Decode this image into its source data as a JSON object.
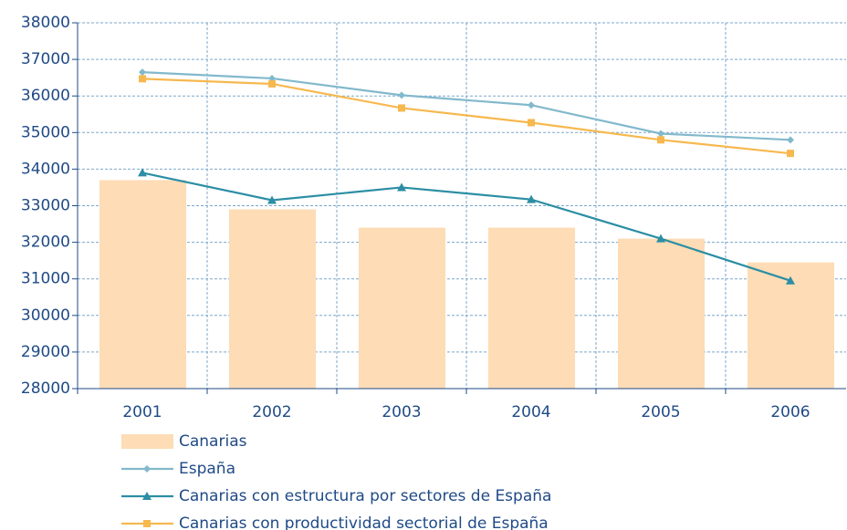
{
  "chart_data": {
    "type": "bar",
    "categories": [
      "2001",
      "2002",
      "2003",
      "2004",
      "2005",
      "2006"
    ],
    "series": [
      {
        "name": "Canarias",
        "type": "bar",
        "color": "#fddcb6",
        "values": [
          33700,
          32900,
          32400,
          32400,
          32100,
          31450
        ]
      },
      {
        "name": "España",
        "type": "line",
        "marker": "diamond",
        "color": "#82b9cc",
        "values": [
          36650,
          36480,
          36020,
          35750,
          34970,
          34800
        ]
      },
      {
        "name": "Canarias con estructura por sectores de España",
        "type": "line",
        "marker": "triangle",
        "color": "#2b8ea4",
        "values": [
          33900,
          33150,
          33500,
          33170,
          32100,
          30950
        ]
      },
      {
        "name": "Canarias con productividad sectorial de España",
        "type": "line",
        "marker": "square",
        "color": "#f7b84f",
        "values": [
          36470,
          36330,
          35670,
          35270,
          34800,
          34430
        ]
      }
    ],
    "ylim": [
      28000,
      38000
    ],
    "yticks": [
      28000,
      29000,
      30000,
      31000,
      32000,
      33000,
      34000,
      35000,
      36000,
      37000,
      38000
    ],
    "grid": true,
    "legend": "bottom"
  }
}
